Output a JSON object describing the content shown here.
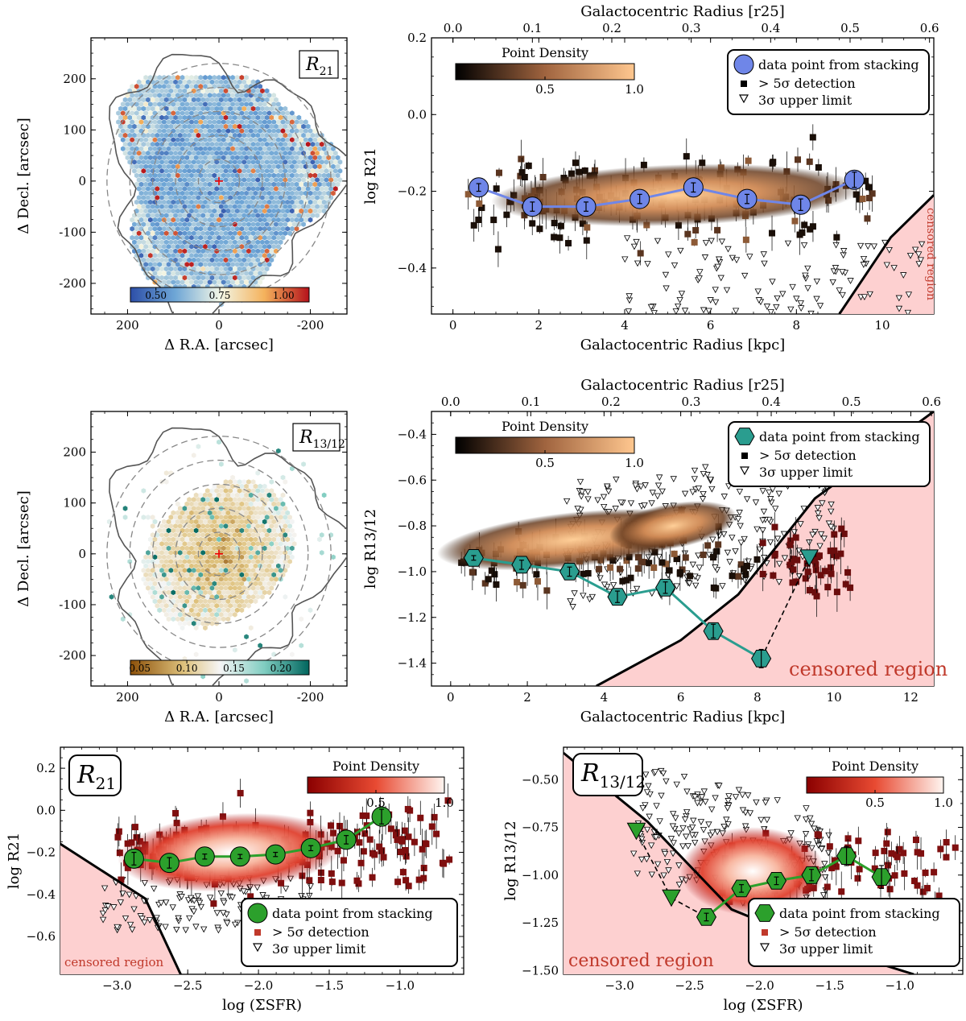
{
  "chart_data": [
    {
      "id": "map_r21",
      "type": "heatmap",
      "label": "R21",
      "label_main": "R",
      "label_sub": "21",
      "xlabel": "Δ R.A. [arcsec]",
      "ylabel": "Δ Decl. [arcsec]",
      "xlim": [
        280,
        -280
      ],
      "ylim": [
        -260,
        280
      ],
      "xticks": [
        200,
        0,
        -200
      ],
      "yticks": [
        -200,
        -100,
        0,
        100,
        200
      ],
      "colorbar": {
        "range": [
          0.4,
          1.1
        ],
        "ticks": [
          0.5,
          0.75,
          1.0
        ],
        "tick_labels": [
          "0.50",
          "0.75",
          "1.00"
        ]
      },
      "colors": {
        "low": "#3b4cc0",
        "mid": "#eef6fa",
        "high": "#b40426"
      }
    },
    {
      "id": "radial_r21",
      "type": "scatter",
      "xlabel": "Galactocentric Radius [kpc]",
      "x2label": "Galactocentric Radius [r25]",
      "ylabel": "log R21",
      "xlim": [
        -0.5,
        11.2
      ],
      "ylim": [
        -0.52,
        0.2
      ],
      "xticks": [
        0,
        2,
        4,
        6,
        8,
        10
      ],
      "xtick_labels": [
        "0",
        "2",
        "4",
        "6",
        "8",
        "10"
      ],
      "yticks": [
        -0.4,
        -0.2,
        0.0,
        0.2
      ],
      "ytick_labels": [
        "−0.4",
        "−0.2",
        "0.0",
        "0.2"
      ],
      "x2ticks": [
        0.0,
        0.1,
        0.2,
        0.3,
        0.4,
        0.5,
        0.6
      ],
      "x2tick_labels": [
        "0.0",
        "0.1",
        "0.2",
        "0.3",
        "0.4",
        "0.5",
        "0.6"
      ],
      "r25_kpc": 18.5,
      "stack": {
        "name": "data point from stacking",
        "x": [
          0.6,
          1.85,
          3.1,
          4.35,
          5.6,
          6.85,
          8.1,
          9.35
        ],
        "y": [
          -0.19,
          -0.24,
          -0.24,
          -0.22,
          -0.19,
          -0.22,
          -0.235,
          -0.17
        ],
        "err": [
          0.01,
          0.012,
          0.012,
          0.012,
          0.012,
          0.012,
          0.015,
          0.02
        ],
        "color": "#6f86e8",
        "marker": "circle"
      },
      "censored": {
        "label": "censored region",
        "boundary_x": [
          9.0,
          10.2,
          11.2
        ],
        "boundary_y": [
          -0.52,
          -0.32,
          -0.21
        ]
      },
      "density_colorbar": {
        "title": "Point Density",
        "ticks": [
          0.5,
          1.0
        ],
        "tick_labels": [
          "0.5",
          "1.0"
        ]
      },
      "legend": {
        "stack": "data point from stacking",
        "detection": "> 5σ detection",
        "limit": "3σ upper limit"
      }
    },
    {
      "id": "map_r1312",
      "type": "heatmap",
      "label": "R13/12",
      "label_main": "R",
      "label_sub": "13/12",
      "xlabel": "Δ R.A. [arcsec]",
      "ylabel": "Δ Decl. [arcsec]",
      "xlim": [
        280,
        -280
      ],
      "ylim": [
        -260,
        280
      ],
      "xticks": [
        200,
        0,
        -200
      ],
      "yticks": [
        -200,
        -100,
        0,
        100,
        200
      ],
      "colorbar": {
        "range": [
          0.04,
          0.23
        ],
        "ticks": [
          0.05,
          0.1,
          0.15,
          0.2
        ],
        "tick_labels": [
          "0.05",
          "0.10",
          "0.15",
          "0.20"
        ]
      },
      "colors": {
        "low": "#8c510a",
        "mid": "#f5f5f5",
        "high": "#01665e"
      }
    },
    {
      "id": "radial_r1312",
      "type": "scatter",
      "xlabel": "Galactocentric Radius [kpc]",
      "x2label": "Galactocentric Radius [r25]",
      "ylabel": "log R13/12",
      "xlim": [
        -0.5,
        12.6
      ],
      "ylim": [
        -1.5,
        -0.3
      ],
      "xticks": [
        0,
        2,
        4,
        6,
        8,
        10,
        12
      ],
      "xtick_labels": [
        "0",
        "2",
        "4",
        "6",
        "8",
        "10",
        "12"
      ],
      "yticks": [
        -1.4,
        -1.2,
        -1.0,
        -0.8,
        -0.6,
        -0.4
      ],
      "ytick_labels": [
        "−1.4",
        "−1.2",
        "−1.0",
        "−0.8",
        "−0.6",
        "−0.4"
      ],
      "x2ticks": [
        0.0,
        0.1,
        0.2,
        0.3,
        0.4,
        0.5,
        0.6
      ],
      "x2tick_labels": [
        "0.0",
        "0.1",
        "0.2",
        "0.3",
        "0.4",
        "0.5",
        "0.6"
      ],
      "r25_kpc": 20.9,
      "stack": {
        "name": "data point from stacking",
        "x": [
          0.6,
          1.85,
          3.1,
          4.35,
          5.6,
          6.85,
          8.1
        ],
        "y": [
          -0.94,
          -0.97,
          -1.0,
          -1.11,
          -1.07,
          -1.26,
          -1.38
        ],
        "err": [
          0.01,
          0.02,
          0.02,
          0.025,
          0.025,
          0.03,
          0.04
        ],
        "color": "#2a9d8f",
        "marker": "hexagon"
      },
      "upper_limit_point": {
        "x": 9.35,
        "y": -0.94
      },
      "censored": {
        "label": "censored region",
        "boundary_x": [
          3.8,
          6.0,
          7.5,
          9.5,
          12.6
        ],
        "boundary_y": [
          -1.5,
          -1.3,
          -1.1,
          -0.68,
          -0.3
        ]
      },
      "density_colorbar": {
        "title": "Point Density",
        "ticks": [
          0.5,
          1.0
        ],
        "tick_labels": [
          "0.5",
          "1.0"
        ]
      },
      "legend": {
        "stack": "data point from stacking",
        "detection": "> 5σ detection",
        "limit": "3σ upper limit"
      }
    },
    {
      "id": "sfr_r21",
      "type": "scatter",
      "label": "R21",
      "label_main": "R",
      "label_sub": "21",
      "xlabel": "log (ΣSFR)",
      "ylabel": "log R21",
      "xlim": [
        -3.4,
        -0.55
      ],
      "ylim": [
        -0.78,
        0.3
      ],
      "xticks": [
        -3.0,
        -2.5,
        -2.0,
        -1.5,
        -1.0
      ],
      "xtick_labels": [
        "−3.0",
        "−2.5",
        "−2.0",
        "−1.5",
        "−1.0"
      ],
      "yticks": [
        -0.6,
        -0.4,
        -0.2,
        0.0,
        0.2
      ],
      "ytick_labels": [
        "−0.6",
        "−0.4",
        "−0.2",
        "0.0",
        "0.2"
      ],
      "stack": {
        "name": "data point from stacking",
        "x": [
          -2.88,
          -2.63,
          -2.38,
          -2.13,
          -1.88,
          -1.63,
          -1.38,
          -1.13
        ],
        "y": [
          -0.23,
          -0.25,
          -0.22,
          -0.22,
          -0.21,
          -0.18,
          -0.14,
          -0.03
        ],
        "err": [
          0.03,
          0.025,
          0.012,
          0.01,
          0.01,
          0.012,
          0.02,
          0.035
        ],
        "color": "#2ca02c",
        "marker": "circle"
      },
      "censored": {
        "label": "censored region",
        "boundary_x": [
          -3.4,
          -2.8,
          -2.55
        ],
        "boundary_y": [
          -0.16,
          -0.42,
          -0.78
        ]
      },
      "density_colorbar": {
        "title": "Point Density",
        "ticks": [
          0.5,
          1.0
        ],
        "tick_labels": [
          "0.5",
          "1.0"
        ]
      },
      "legend": {
        "stack": "data point from stacking",
        "detection": "> 5σ detection",
        "limit": "3σ upper limit"
      }
    },
    {
      "id": "sfr_r1312",
      "type": "scatter",
      "label": "R13/12",
      "label_main": "R",
      "label_sub": "13/12",
      "xlabel": "log (ΣSFR)",
      "ylabel": "log R13/12",
      "xlim": [
        -3.4,
        -0.55
      ],
      "ylim": [
        -1.52,
        -0.33
      ],
      "xticks": [
        -3.0,
        -2.5,
        -2.0,
        -1.5,
        -1.0
      ],
      "xtick_labels": [
        "−3.0",
        "−2.5",
        "−2.0",
        "−1.5",
        "−1.0"
      ],
      "yticks": [
        -1.5,
        -1.25,
        -1.0,
        -0.75,
        -0.5
      ],
      "ytick_labels": [
        "−1.50",
        "−1.25",
        "−1.00",
        "−0.75",
        "−0.50"
      ],
      "stack": {
        "name": "data point from stacking",
        "x": [
          -2.38,
          -2.13,
          -1.88,
          -1.63,
          -1.38,
          -1.13
        ],
        "y": [
          -1.22,
          -1.07,
          -1.03,
          -1.0,
          -0.9,
          -1.01
        ],
        "err": [
          0.02,
          0.02,
          0.02,
          0.03,
          0.05,
          0.06
        ],
        "color": "#2ca02c",
        "marker": "hexagon"
      },
      "upper_limits": {
        "x": [
          -2.88,
          -2.63
        ],
        "y": [
          -0.77,
          -1.12
        ]
      },
      "censored": {
        "label": "censored region",
        "boundary_x": [
          -3.4,
          -2.8,
          -2.2,
          -1.6,
          -0.9
        ],
        "boundary_y": [
          -0.36,
          -0.72,
          -1.18,
          -1.36,
          -1.52
        ]
      },
      "density_colorbar": {
        "title": "Point Density",
        "ticks": [
          0.5,
          1.0
        ],
        "tick_labels": [
          "0.5",
          "1.0"
        ]
      },
      "legend": {
        "stack": "data point from stacking",
        "detection": "> 5σ detection",
        "limit": "3σ upper limit"
      }
    }
  ]
}
